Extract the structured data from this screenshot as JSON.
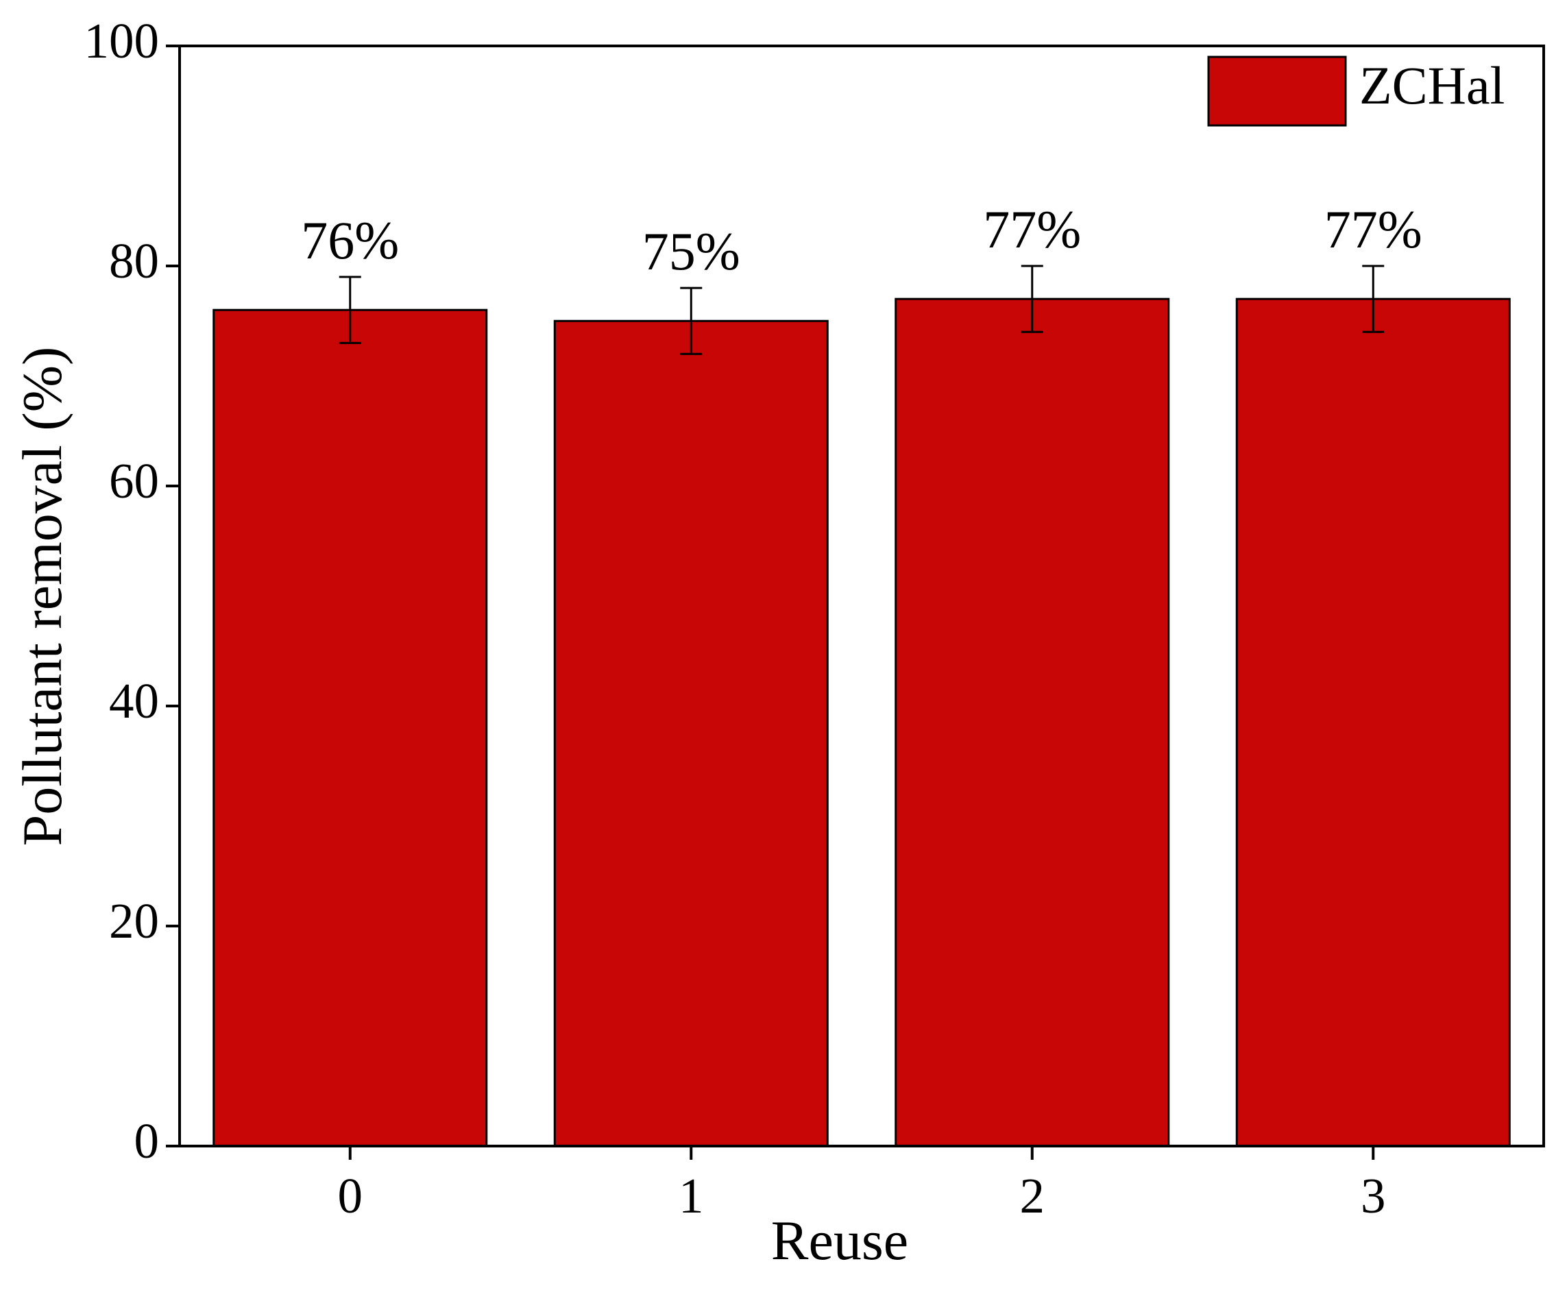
{
  "chart_data": {
    "type": "bar",
    "x_label": "Reuse",
    "y_label": "Pollutant removal (%)",
    "categories": [
      "0",
      "1",
      "2",
      "3"
    ],
    "series": [
      {
        "name": "ZCHal",
        "color": "#c80606",
        "values": [
          76,
          75,
          77,
          77
        ],
        "value_labels": [
          "76%",
          "75%",
          "77%",
          "77%"
        ],
        "errors": [
          3,
          3,
          3,
          3
        ]
      }
    ],
    "ylim": [
      0,
      100
    ],
    "yticks": [
      0,
      20,
      40,
      60,
      80,
      100
    ],
    "grid": false,
    "legend": "upper right"
  }
}
